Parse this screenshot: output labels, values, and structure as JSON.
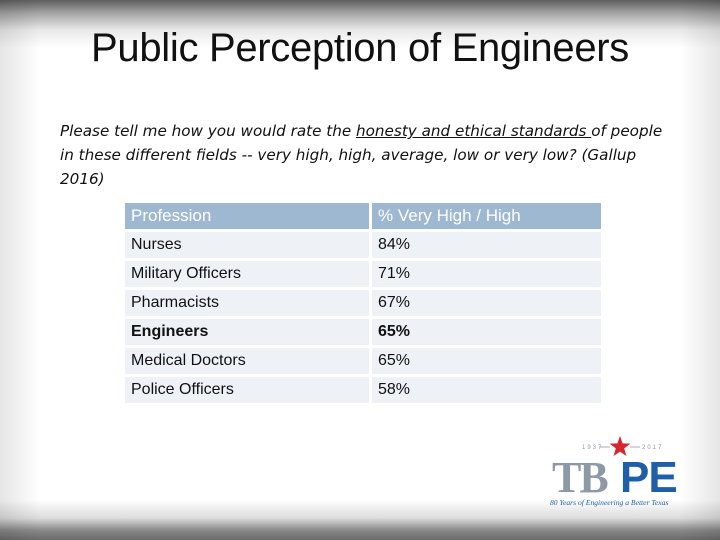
{
  "title": "Public Perception of Engineers",
  "question": {
    "before": "Please tell me how you would rate the ",
    "underlined": "honesty and ethical standards ",
    "after": "of people in these different fields -- very high, high, average, low or very low? (Gallup 2016)"
  },
  "table": {
    "headers": [
      "Profession",
      "% Very High / High"
    ],
    "rows": [
      {
        "profession": "Nurses",
        "value": "84%"
      },
      {
        "profession": "Military Officers",
        "value": "71%"
      },
      {
        "profession": "Pharmacists",
        "value": "67%"
      },
      {
        "profession": "Engineers",
        "value": "65%"
      },
      {
        "profession": "Medical Doctors",
        "value": "65%"
      },
      {
        "profession": "Police Officers",
        "value": "58%"
      }
    ]
  },
  "logo": {
    "year_start": "1937",
    "year_end": "2017",
    "letters_a": "TB",
    "letters_b": "PE",
    "tagline": "80 Years of Engineering a Better Texas",
    "colors": {
      "gray": "#8d9aa6",
      "blue": "#1f5ea8",
      "red": "#d8262f"
    }
  }
}
